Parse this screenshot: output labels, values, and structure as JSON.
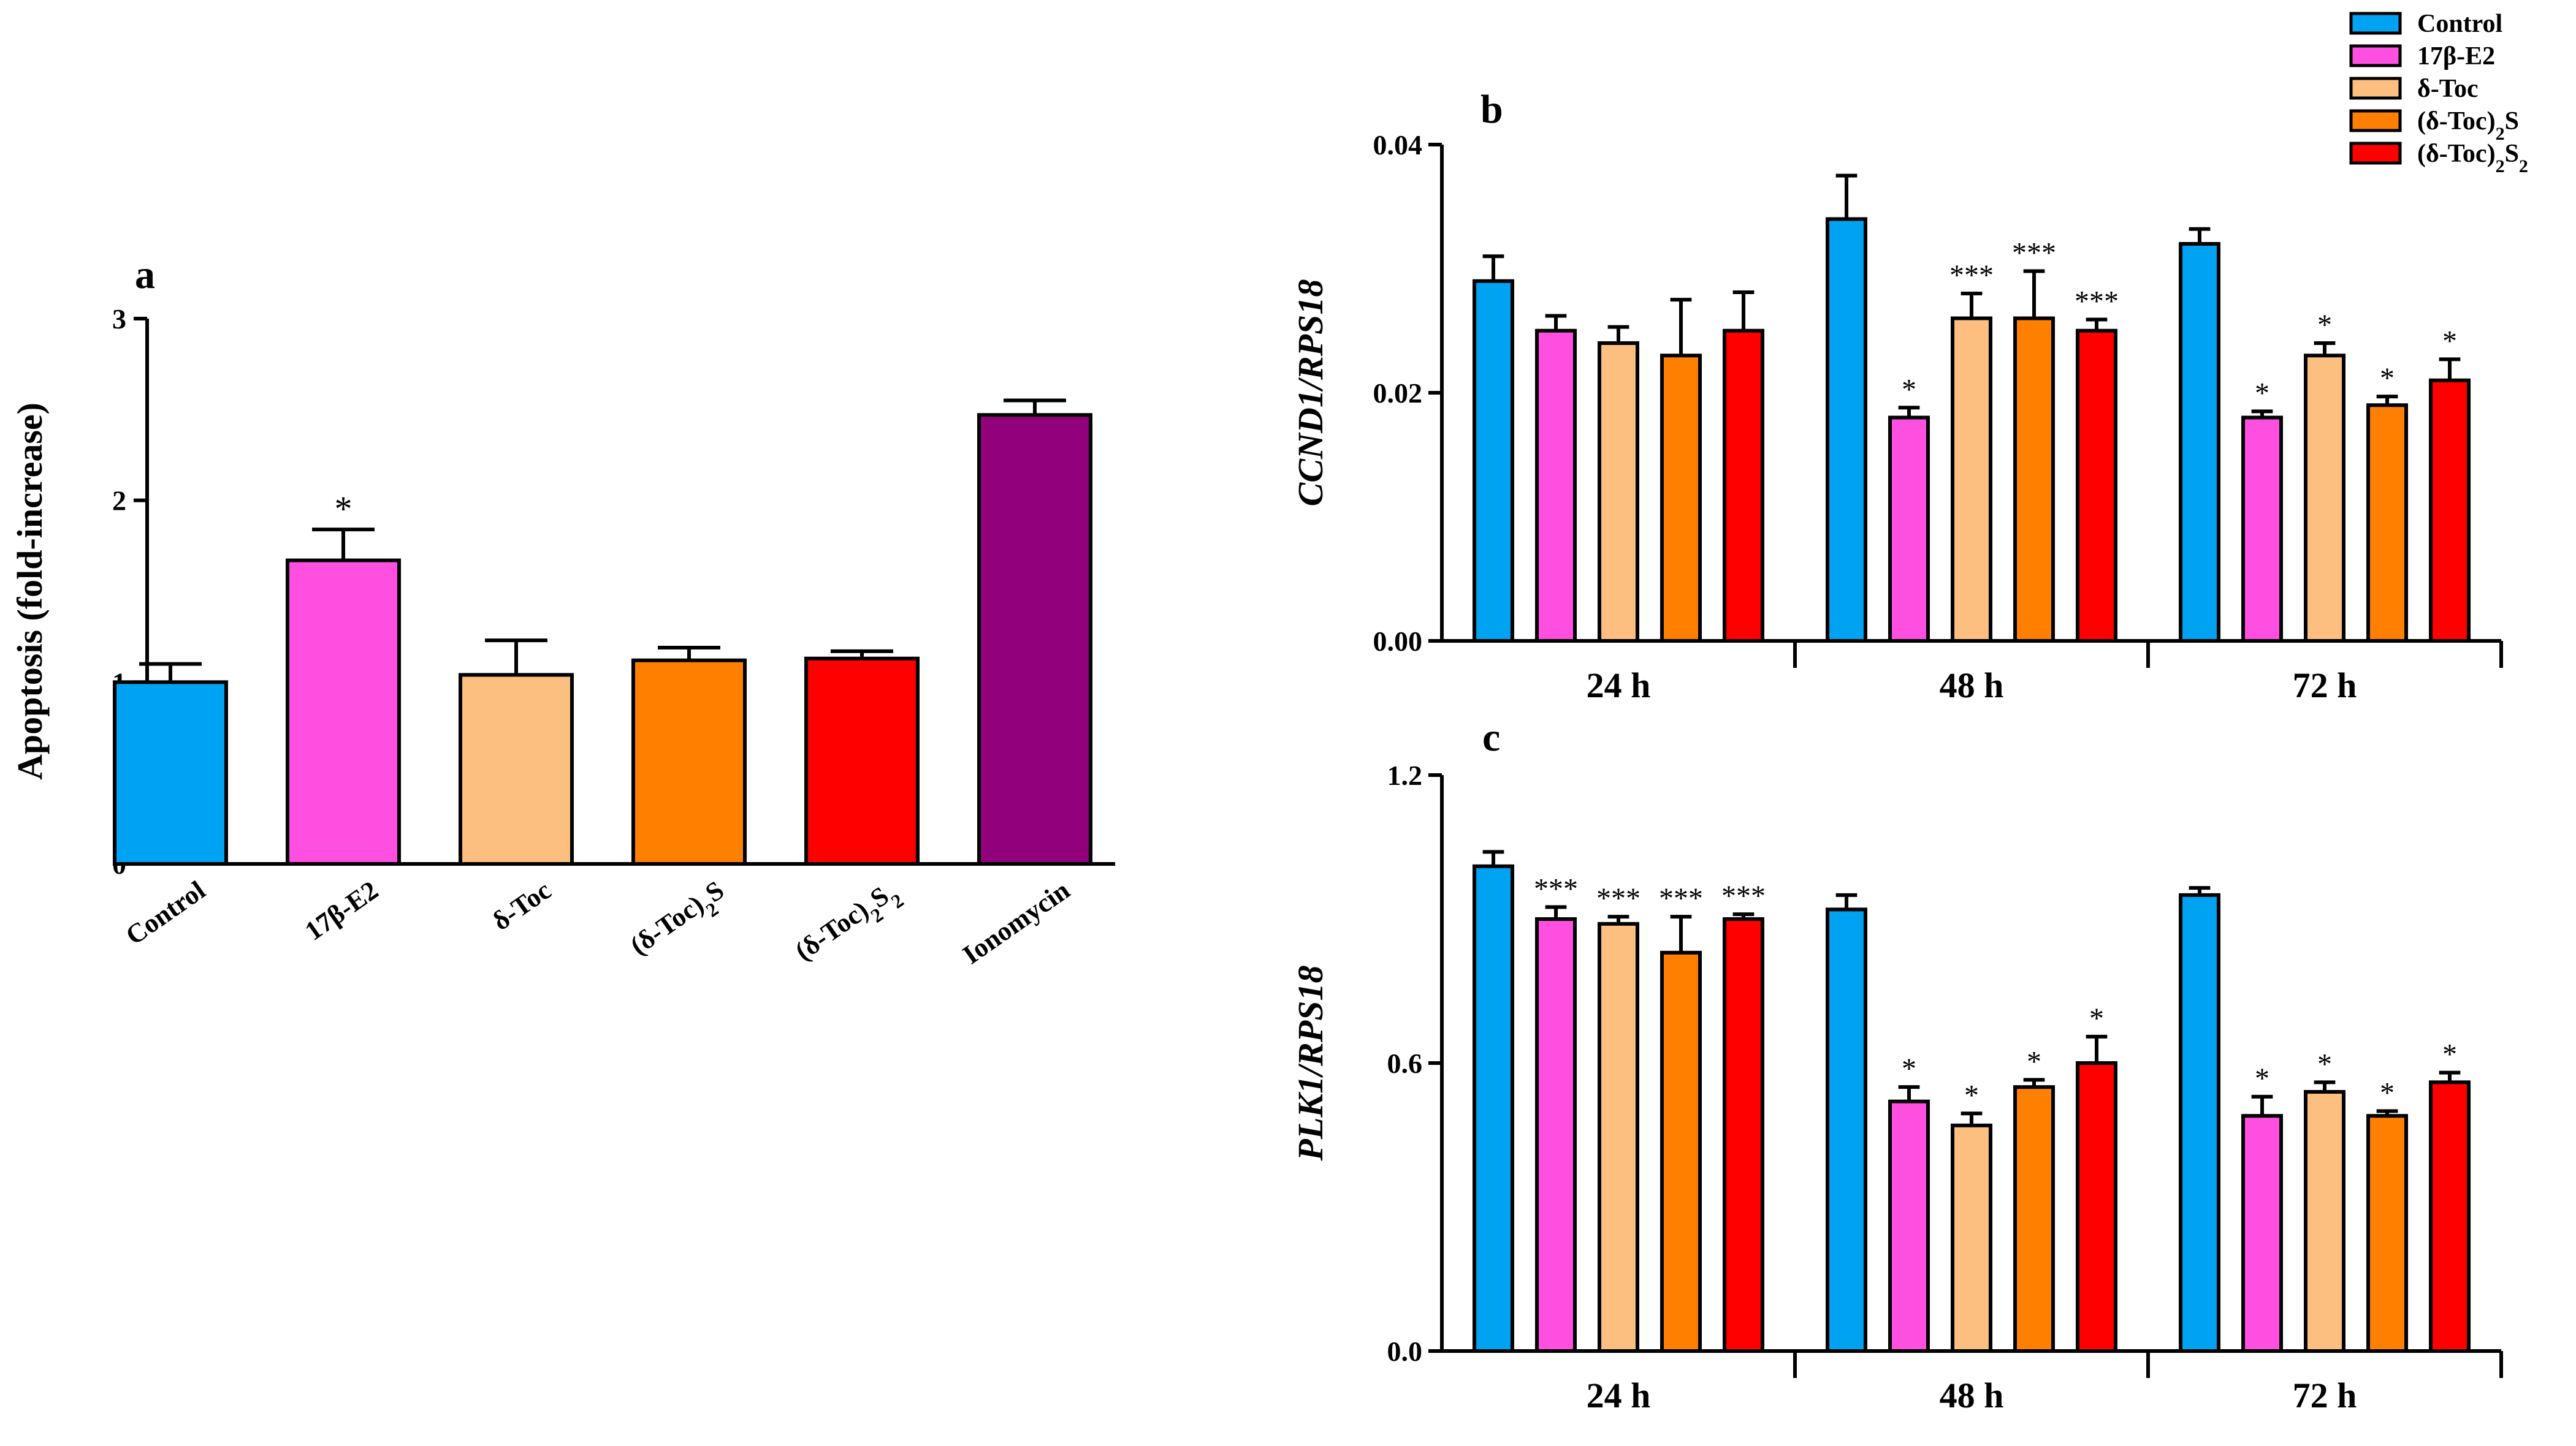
{
  "colors": {
    "control": "#00A2F2",
    "e2": "#FF4FE0",
    "dtoc": "#FDBF80",
    "dtoc2s": "#FF8000",
    "dtoc2s2": "#FF0000",
    "ionomycin": "#92007C",
    "stroke": "#000000"
  },
  "legend": {
    "items": [
      {
        "label": "Control",
        "color": "control"
      },
      {
        "label": "17β-E2",
        "color": "e2"
      },
      {
        "label": "δ-Toc",
        "color": "dtoc"
      },
      {
        "label": "(δ-Toc)2S",
        "color": "dtoc2s"
      },
      {
        "label": "(δ-Toc)2S2",
        "color": "dtoc2s2"
      }
    ]
  },
  "chart_data": [
    {
      "panel": "a",
      "type": "bar",
      "ylabel": "Apoptosis (fold-increase)",
      "ylim": [
        0,
        3
      ],
      "yticks": [
        "0",
        "1",
        "2",
        "3"
      ],
      "categories": [
        "Control",
        "17β-E2",
        "δ-Toc",
        "(δ-Toc)2S",
        "(δ-Toc)2S2",
        "Ionomycin"
      ],
      "colors": [
        "control",
        "e2",
        "dtoc",
        "dtoc2s",
        "dtoc2s2",
        "ionomycin"
      ],
      "values": [
        1.0,
        1.67,
        1.04,
        1.12,
        1.13,
        2.47
      ],
      "errors": [
        0.1,
        0.17,
        0.19,
        0.07,
        0.04,
        0.08
      ],
      "significance": [
        "",
        "*",
        "",
        "",
        "",
        ""
      ]
    },
    {
      "panel": "b",
      "type": "bar",
      "ylabel": "CCND1/RPS18",
      "ylim": [
        0,
        0.04
      ],
      "yticks": [
        "0.00",
        "0.02",
        "0.04"
      ],
      "groups": [
        "24 h",
        "48 h",
        "72 h"
      ],
      "series": [
        {
          "name": "Control",
          "color": "control",
          "values": [
            0.029,
            0.034,
            0.032
          ],
          "errors": [
            0.002,
            0.0035,
            0.0012
          ],
          "significance": [
            "",
            "",
            ""
          ]
        },
        {
          "name": "17β-E2",
          "color": "e2",
          "values": [
            0.025,
            0.018,
            0.018
          ],
          "errors": [
            0.0012,
            0.0008,
            0.0005
          ],
          "significance": [
            "",
            "*",
            "*"
          ]
        },
        {
          "name": "δ-Toc",
          "color": "dtoc",
          "values": [
            0.024,
            0.026,
            0.023
          ],
          "errors": [
            0.0013,
            0.002,
            0.001
          ],
          "significance": [
            "",
            "***",
            "*"
          ]
        },
        {
          "name": "(δ-Toc)2S",
          "color": "dtoc2s",
          "values": [
            0.023,
            0.026,
            0.019
          ],
          "errors": [
            0.0045,
            0.0038,
            0.0007
          ],
          "significance": [
            "",
            "***",
            "*"
          ]
        },
        {
          "name": "(δ-Toc)2S2",
          "color": "dtoc2s2",
          "values": [
            0.025,
            0.025,
            0.021
          ],
          "errors": [
            0.0031,
            0.0009,
            0.0017
          ],
          "significance": [
            "",
            "***",
            "*"
          ]
        }
      ]
    },
    {
      "panel": "c",
      "type": "bar",
      "ylabel": "PLK1/RPS18",
      "ylim": [
        0,
        1.2
      ],
      "yticks": [
        "0.0",
        "0.6",
        "1.2"
      ],
      "groups": [
        "24 h",
        "48 h",
        "72 h"
      ],
      "series": [
        {
          "name": "Control",
          "color": "control",
          "values": [
            1.01,
            0.92,
            0.95
          ],
          "errors": [
            0.03,
            0.03,
            0.015
          ],
          "significance": [
            "",
            "",
            ""
          ]
        },
        {
          "name": "17β-E2",
          "color": "e2",
          "values": [
            0.9,
            0.52,
            0.49
          ],
          "errors": [
            0.025,
            0.03,
            0.04
          ],
          "significance": [
            "***",
            "*",
            "*"
          ]
        },
        {
          "name": "δ-Toc",
          "color": "dtoc",
          "values": [
            0.89,
            0.47,
            0.54
          ],
          "errors": [
            0.015,
            0.025,
            0.02
          ],
          "significance": [
            "***",
            "*",
            "*"
          ]
        },
        {
          "name": "(δ-Toc)2S",
          "color": "dtoc2s",
          "values": [
            0.83,
            0.55,
            0.49
          ],
          "errors": [
            0.075,
            0.015,
            0.01
          ],
          "significance": [
            "***",
            "*",
            "*"
          ]
        },
        {
          "name": "(δ-Toc)2S2",
          "color": "dtoc2s2",
          "values": [
            0.9,
            0.6,
            0.56
          ],
          "errors": [
            0.01,
            0.055,
            0.02
          ],
          "significance": [
            "***",
            "*",
            "*"
          ]
        }
      ]
    }
  ]
}
